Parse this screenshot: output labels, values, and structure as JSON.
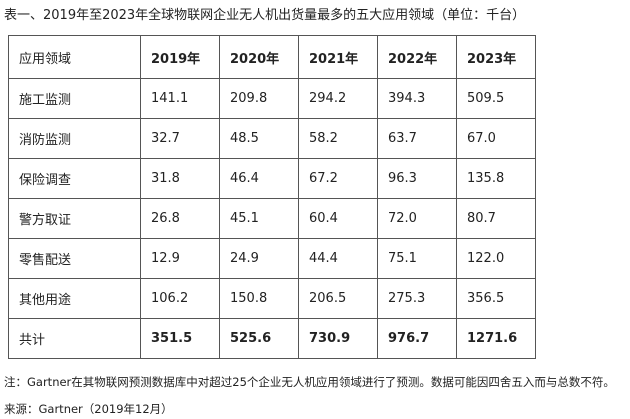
{
  "title": "表一、2019年至2023年全球物联网企业无人机出货量最多的五大应用领域（单位：千台）",
  "table": {
    "header": [
      "应用领域",
      "2019年",
      "2020年",
      "2021年",
      "2022年",
      "2023年"
    ],
    "rows": [
      [
        "施工监测",
        "141.1",
        "209.8",
        "294.2",
        "394.3",
        "509.5"
      ],
      [
        "消防监测",
        "32.7",
        "48.5",
        "58.2",
        "63.7",
        "67.0"
      ],
      [
        "保险调查",
        "31.8",
        "46.4",
        "67.2",
        "96.3",
        "135.8"
      ],
      [
        "警方取证",
        "26.8",
        "45.1",
        "60.4",
        "72.0",
        "80.7"
      ],
      [
        "零售配送",
        "12.9",
        "24.9",
        "44.4",
        "75.1",
        "122.0"
      ],
      [
        "其他用途",
        "106.2",
        "150.8",
        "206.5",
        "275.3",
        "356.5"
      ],
      [
        "共计",
        "351.5",
        "525.6",
        "730.9",
        "976.7",
        "1271.6"
      ]
    ]
  },
  "note": "注：Gartner在其物联网预测数据库中对超过25个企业无人机应用领域进行了预测。数据可能因四舍五入而与总数不符。",
  "source": "来源：Gartner（2019年12月）"
}
